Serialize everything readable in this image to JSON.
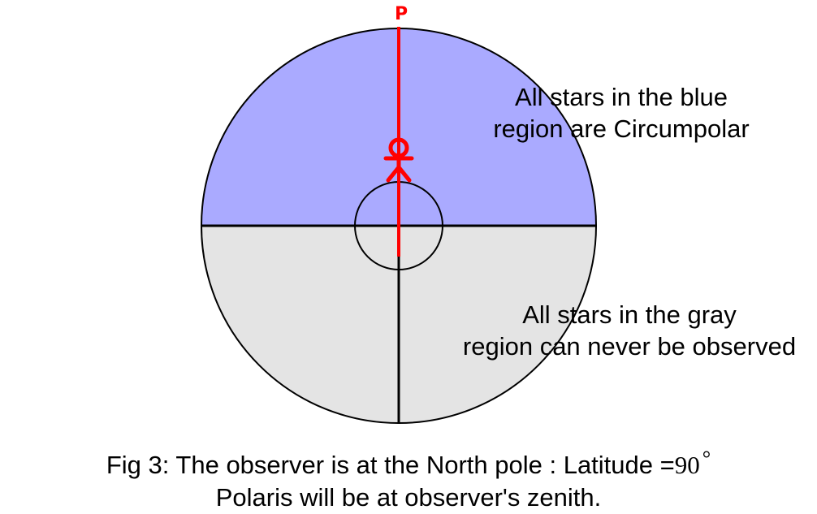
{
  "pole_label": "P",
  "blue_region_label": [
    "All stars in the blue",
    "region are Circumpolar"
  ],
  "gray_region_label": [
    "All stars in the gray",
    "region can never be observed"
  ],
  "caption": {
    "line1_prefix": "Fig 3: The observer is at the North pole : Latitude =",
    "line1_value": "90",
    "line1_unit": "°",
    "line2": "Polaris will be at observer's zenith."
  },
  "colors": {
    "visible_region": "#aaaaff",
    "hidden_region": "#e4e4e4",
    "polar_axis": "#ff0000",
    "outline": "#000000"
  },
  "icons": [
    "observer-stick-figure-icon"
  ]
}
